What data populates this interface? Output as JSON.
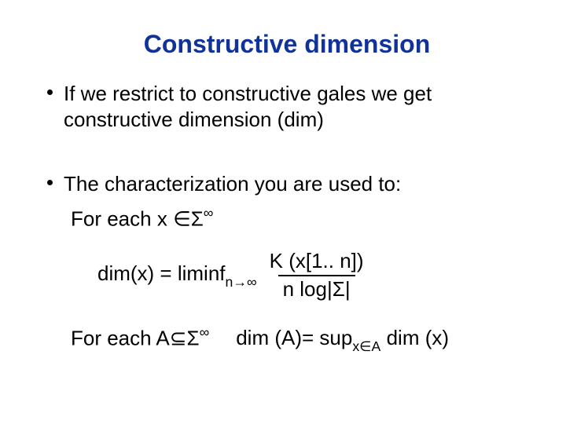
{
  "title_color": "#113399",
  "text_color": "#000000",
  "title": "Constructive dimension",
  "bullet1_line1": "If we restrict to constructive gales we get",
  "bullet1_line2": "constructive dimension (dim)",
  "bullet2": "The characterization you are used to:",
  "foreach_x_prefix": "For each x ",
  "in_sym": "∈",
  "Sigma": "Σ",
  "infty": "∞",
  "dimx_eq": "dim(x) = liminf",
  "sub_n_arrow_inf": "n→∞",
  "numerator": "K (x[1.. n])",
  "denominator_pre": "n log|",
  "denominator_post": "|",
  "foreach_A_prefix": "For each A",
  "subset_sym": "⊆",
  "dimA_eq_pre": "dim (A)=  sup",
  "sub_xinA": "x∈A",
  "dimA_eq_post": " dim (x)"
}
